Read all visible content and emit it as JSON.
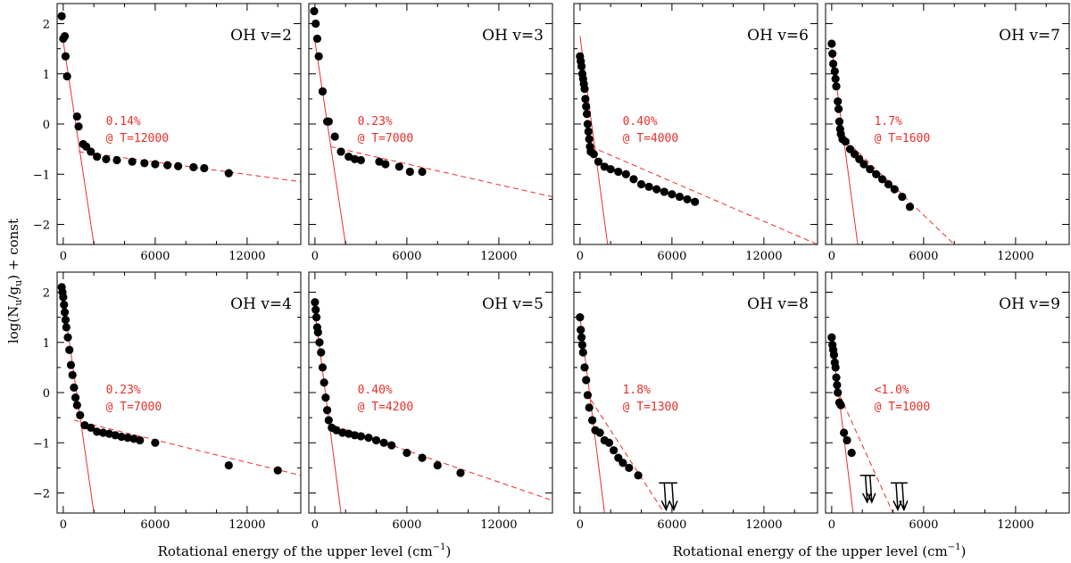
{
  "figure": {
    "ylabel_main": "log(N",
    "ylabel_sub1": "u",
    "ylabel_slash": "/g",
    "ylabel_sub2": "u",
    "ylabel_tail": ") + const",
    "xlabel_main": "Rotational energy of the upper level (cm",
    "xlabel_sup": "−1",
    "xlabel_tail": ")",
    "colors": {
      "fit": "#e8302a",
      "points": "#000000",
      "frame": "#000000"
    }
  },
  "chart_data": [
    {
      "type": "scatter",
      "title": "OH v=2",
      "xlim": [
        -400,
        15500
      ],
      "ylim": [
        -2.4,
        2.4
      ],
      "xticks": [
        "0",
        "6000",
        "12000"
      ],
      "yticks": [
        "2",
        "1",
        "0",
        "−1",
        "−2"
      ],
      "annotation": [
        "0.14%",
        "@ T=12000"
      ],
      "fit_lines": [
        {
          "style": "solid",
          "x": [
            0,
            2000
          ],
          "y": [
            1.65,
            -2.4
          ]
        },
        {
          "style": "dashed",
          "x": [
            1000,
            15500
          ],
          "y": [
            -0.55,
            -1.15
          ]
        }
      ],
      "points": [
        [
          -100,
          2.15
        ],
        [
          0,
          1.7
        ],
        [
          100,
          1.75
        ],
        [
          150,
          1.35
        ],
        [
          250,
          0.95
        ],
        [
          900,
          0.15
        ],
        [
          1000,
          -0.05
        ],
        [
          1300,
          -0.4
        ],
        [
          1500,
          -0.45
        ],
        [
          1800,
          -0.55
        ],
        [
          2200,
          -0.65
        ],
        [
          2800,
          -0.7
        ],
        [
          3500,
          -0.72
        ],
        [
          4500,
          -0.75
        ],
        [
          5300,
          -0.78
        ],
        [
          6000,
          -0.8
        ],
        [
          6800,
          -0.82
        ],
        [
          7500,
          -0.84
        ],
        [
          8500,
          -0.86
        ],
        [
          9200,
          -0.88
        ],
        [
          10800,
          -0.98
        ]
      ],
      "upper_limits": []
    },
    {
      "type": "scatter",
      "title": "OH v=3",
      "xlim": [
        -400,
        15500
      ],
      "ylim": [
        -2.4,
        2.4
      ],
      "xticks": [
        "0",
        "6000",
        "12000"
      ],
      "yticks": [],
      "annotation": [
        "0.23%",
        "@ T=7000"
      ],
      "fit_lines": [
        {
          "style": "solid",
          "x": [
            0,
            2000
          ],
          "y": [
            1.65,
            -2.4
          ]
        },
        {
          "style": "dashed",
          "x": [
            1000,
            15500
          ],
          "y": [
            -0.45,
            -1.45
          ]
        }
      ],
      "points": [
        [
          -50,
          2.25
        ],
        [
          50,
          2.0
        ],
        [
          150,
          1.7
        ],
        [
          250,
          1.35
        ],
        [
          500,
          0.65
        ],
        [
          800,
          0.05
        ],
        [
          900,
          0.05
        ],
        [
          1300,
          -0.25
        ],
        [
          1700,
          -0.55
        ],
        [
          2200,
          -0.65
        ],
        [
          2600,
          -0.7
        ],
        [
          3000,
          -0.72
        ],
        [
          4200,
          -0.75
        ],
        [
          4600,
          -0.8
        ],
        [
          5500,
          -0.85
        ],
        [
          6200,
          -0.95
        ],
        [
          7000,
          -0.95
        ]
      ],
      "upper_limits": []
    },
    {
      "type": "scatter",
      "title": "OH v=6",
      "xlim": [
        -400,
        15500
      ],
      "ylim": [
        -2.4,
        2.4
      ],
      "xticks": [
        "0",
        "6000",
        "12000"
      ],
      "yticks": [],
      "annotation": [
        "0.40%",
        "@ T=4000"
      ],
      "fit_lines": [
        {
          "style": "solid",
          "x": [
            0,
            1800
          ],
          "y": [
            1.75,
            -2.4
          ]
        },
        {
          "style": "dashed",
          "x": [
            700,
            15500
          ],
          "y": [
            -0.45,
            -2.4
          ]
        }
      ],
      "points": [
        [
          0,
          1.35
        ],
        [
          50,
          1.25
        ],
        [
          100,
          1.15
        ],
        [
          150,
          1.0
        ],
        [
          200,
          0.9
        ],
        [
          250,
          0.8
        ],
        [
          300,
          0.7
        ],
        [
          350,
          0.5
        ],
        [
          400,
          0.35
        ],
        [
          450,
          0.2
        ],
        [
          500,
          0.0
        ],
        [
          550,
          -0.15
        ],
        [
          600,
          -0.3
        ],
        [
          650,
          -0.45
        ],
        [
          700,
          -0.55
        ],
        [
          900,
          -0.6
        ],
        [
          1200,
          -0.75
        ],
        [
          1600,
          -0.85
        ],
        [
          2000,
          -0.9
        ],
        [
          2500,
          -0.95
        ],
        [
          3000,
          -1.0
        ],
        [
          3500,
          -1.1
        ],
        [
          4000,
          -1.2
        ],
        [
          4500,
          -1.25
        ],
        [
          5000,
          -1.3
        ],
        [
          5500,
          -1.35
        ],
        [
          6000,
          -1.4
        ],
        [
          6500,
          -1.45
        ],
        [
          7000,
          -1.5
        ],
        [
          7500,
          -1.55
        ]
      ],
      "upper_limits": []
    },
    {
      "type": "scatter",
      "title": "OH v=7",
      "xlim": [
        -400,
        15500
      ],
      "ylim": [
        -2.4,
        2.4
      ],
      "xticks": [
        "0",
        "6000",
        "12000"
      ],
      "yticks": [],
      "annotation": [
        "1.7%",
        "@ T=1600"
      ],
      "fit_lines": [
        {
          "style": "solid",
          "x": [
            0,
            1700
          ],
          "y": [
            1.5,
            -2.4
          ]
        },
        {
          "style": "dashed",
          "x": [
            500,
            8000
          ],
          "y": [
            -0.2,
            -2.4
          ]
        }
      ],
      "points": [
        [
          0,
          1.6
        ],
        [
          50,
          1.4
        ],
        [
          100,
          1.2
        ],
        [
          200,
          1.05
        ],
        [
          250,
          0.9
        ],
        [
          300,
          0.75
        ],
        [
          400,
          0.45
        ],
        [
          450,
          0.3
        ],
        [
          500,
          0.05
        ],
        [
          550,
          -0.1
        ],
        [
          600,
          -0.2
        ],
        [
          700,
          -0.3
        ],
        [
          900,
          -0.35
        ],
        [
          1200,
          -0.5
        ],
        [
          1500,
          -0.6
        ],
        [
          1800,
          -0.7
        ],
        [
          2100,
          -0.8
        ],
        [
          2500,
          -0.9
        ],
        [
          2900,
          -1.0
        ],
        [
          3300,
          -1.1
        ],
        [
          3700,
          -1.2
        ],
        [
          4100,
          -1.3
        ],
        [
          4600,
          -1.45
        ],
        [
          5100,
          -1.65
        ]
      ],
      "upper_limits": []
    },
    {
      "type": "scatter",
      "title": "OH v=4",
      "xlim": [
        -400,
        15500
      ],
      "ylim": [
        -2.4,
        2.4
      ],
      "xticks": [
        "0",
        "6000",
        "12000"
      ],
      "yticks": [
        "2",
        "1",
        "0",
        "−1",
        "−2"
      ],
      "annotation": [
        "0.23%",
        "@ T=7000"
      ],
      "fit_lines": [
        {
          "style": "solid",
          "x": [
            0,
            2000
          ],
          "y": [
            1.85,
            -2.4
          ]
        },
        {
          "style": "dashed",
          "x": [
            700,
            15500
          ],
          "y": [
            -0.55,
            -1.65
          ]
        }
      ],
      "points": [
        [
          -100,
          2.1
        ],
        [
          -50,
          2.0
        ],
        [
          0,
          1.9
        ],
        [
          50,
          1.75
        ],
        [
          100,
          1.6
        ],
        [
          150,
          1.45
        ],
        [
          200,
          1.3
        ],
        [
          300,
          1.1
        ],
        [
          400,
          0.85
        ],
        [
          500,
          0.55
        ],
        [
          600,
          0.35
        ],
        [
          700,
          0.1
        ],
        [
          800,
          -0.1
        ],
        [
          900,
          -0.25
        ],
        [
          1100,
          -0.45
        ],
        [
          1400,
          -0.65
        ],
        [
          1800,
          -0.7
        ],
        [
          2200,
          -0.78
        ],
        [
          2600,
          -0.8
        ],
        [
          3000,
          -0.82
        ],
        [
          3400,
          -0.85
        ],
        [
          3800,
          -0.88
        ],
        [
          4200,
          -0.9
        ],
        [
          4600,
          -0.92
        ],
        [
          5000,
          -0.95
        ],
        [
          6000,
          -1.0
        ],
        [
          10800,
          -1.45
        ],
        [
          14000,
          -1.55
        ]
      ],
      "upper_limits": []
    },
    {
      "type": "scatter",
      "title": "OH v=5",
      "xlim": [
        -400,
        15500
      ],
      "ylim": [
        -2.4,
        2.4
      ],
      "xticks": [
        "0",
        "6000",
        "12000"
      ],
      "yticks": [],
      "annotation": [
        "0.40%",
        "@ T=4200"
      ],
      "fit_lines": [
        {
          "style": "solid",
          "x": [
            0,
            1700
          ],
          "y": [
            1.6,
            -2.4
          ]
        },
        {
          "style": "dashed",
          "x": [
            700,
            15500
          ],
          "y": [
            -0.6,
            -2.15
          ]
        }
      ],
      "points": [
        [
          0,
          1.8
        ],
        [
          50,
          1.65
        ],
        [
          100,
          1.5
        ],
        [
          150,
          1.3
        ],
        [
          200,
          1.2
        ],
        [
          300,
          1.0
        ],
        [
          400,
          0.8
        ],
        [
          500,
          0.5
        ],
        [
          600,
          0.2
        ],
        [
          700,
          -0.1
        ],
        [
          800,
          -0.35
        ],
        [
          900,
          -0.55
        ],
        [
          1100,
          -0.7
        ],
        [
          1400,
          -0.75
        ],
        [
          1800,
          -0.8
        ],
        [
          2200,
          -0.82
        ],
        [
          2600,
          -0.85
        ],
        [
          3000,
          -0.87
        ],
        [
          3500,
          -0.9
        ],
        [
          4000,
          -0.95
        ],
        [
          4500,
          -1.0
        ],
        [
          5000,
          -1.05
        ],
        [
          6000,
          -1.2
        ],
        [
          7000,
          -1.3
        ],
        [
          8000,
          -1.45
        ],
        [
          9500,
          -1.6
        ]
      ],
      "upper_limits": []
    },
    {
      "type": "scatter",
      "title": "OH v=8",
      "xlim": [
        -400,
        15500
      ],
      "ylim": [
        -2.4,
        2.4
      ],
      "xticks": [
        "0",
        "6000",
        "12000"
      ],
      "yticks": [],
      "annotation": [
        "1.8%",
        "@ T=1300"
      ],
      "fit_lines": [
        {
          "style": "solid",
          "x": [
            0,
            1600
          ],
          "y": [
            1.5,
            -2.4
          ]
        },
        {
          "style": "dashed",
          "x": [
            400,
            5500
          ],
          "y": [
            0.0,
            -2.4
          ]
        }
      ],
      "points": [
        [
          0,
          1.5
        ],
        [
          50,
          1.25
        ],
        [
          100,
          1.1
        ],
        [
          150,
          0.95
        ],
        [
          200,
          0.8
        ],
        [
          300,
          0.5
        ],
        [
          400,
          0.25
        ],
        [
          500,
          -0.05
        ],
        [
          600,
          -0.3
        ],
        [
          800,
          -0.55
        ],
        [
          1000,
          -0.75
        ],
        [
          1300,
          -0.8
        ],
        [
          1600,
          -0.95
        ],
        [
          1900,
          -1.0
        ],
        [
          2200,
          -1.15
        ],
        [
          2500,
          -1.3
        ],
        [
          2800,
          -1.4
        ],
        [
          3200,
          -1.5
        ],
        [
          3800,
          -1.65
        ]
      ],
      "upper_limits": [
        [
          5500,
          -1.8
        ],
        [
          6000,
          -1.8
        ]
      ]
    },
    {
      "type": "scatter",
      "title": "OH v=9",
      "xlim": [
        -400,
        15500
      ],
      "ylim": [
        -2.4,
        2.4
      ],
      "xticks": [
        "0",
        "6000",
        "12000"
      ],
      "yticks": [],
      "annotation": [
        "<1.0%",
        "@ T=1000"
      ],
      "fit_lines": [
        {
          "style": "solid",
          "x": [
            0,
            1400
          ],
          "y": [
            1.1,
            -2.4
          ]
        },
        {
          "style": "dashed",
          "x": [
            300,
            4000
          ],
          "y": [
            0.1,
            -2.4
          ]
        }
      ],
      "points": [
        [
          0,
          1.1
        ],
        [
          50,
          0.95
        ],
        [
          100,
          0.85
        ],
        [
          150,
          0.75
        ],
        [
          200,
          0.6
        ],
        [
          250,
          0.5
        ],
        [
          300,
          0.3
        ],
        [
          350,
          0.15
        ],
        [
          400,
          0.0
        ],
        [
          500,
          -0.2
        ],
        [
          600,
          -0.25
        ],
        [
          800,
          -0.8
        ],
        [
          1000,
          -0.95
        ],
        [
          1300,
          -1.2
        ]
      ],
      "upper_limits": [
        [
          2200,
          -1.65
        ],
        [
          2500,
          -1.65
        ],
        [
          4200,
          -1.8
        ],
        [
          4600,
          -1.8
        ]
      ]
    }
  ]
}
